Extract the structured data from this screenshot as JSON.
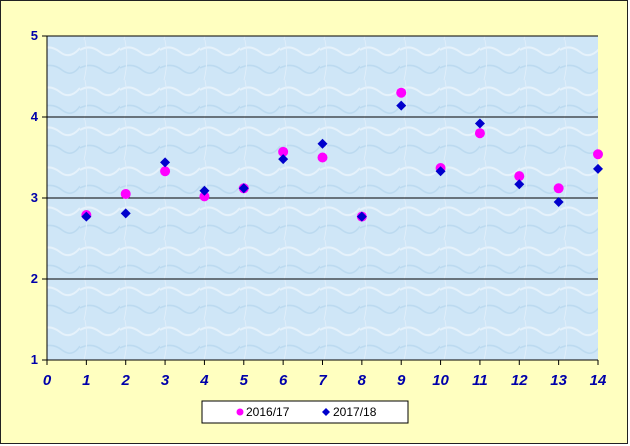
{
  "chart_data": {
    "type": "scatter",
    "title": "",
    "xlabel": "",
    "ylabel": "",
    "xlim": [
      0,
      14
    ],
    "ylim": [
      1,
      5
    ],
    "x_ticks": [
      "0",
      "1",
      "2",
      "3",
      "4",
      "5",
      "6",
      "7",
      "8",
      "9",
      "10",
      "11",
      "12",
      "13",
      "14"
    ],
    "y_ticks": [
      "1",
      "2",
      "3",
      "4",
      "5"
    ],
    "grid": "horizontal",
    "legend_position": "bottom",
    "series": [
      {
        "name": "2016/17",
        "marker": "circle",
        "color": "#ff00ff",
        "x": [
          1,
          2,
          3,
          4,
          5,
          6,
          7,
          8,
          9,
          10,
          11,
          12,
          13,
          14
        ],
        "y": [
          2.79,
          3.05,
          3.33,
          3.02,
          3.12,
          3.57,
          3.5,
          2.77,
          4.3,
          3.37,
          3.8,
          3.27,
          3.12,
          3.54
        ]
      },
      {
        "name": "2017/18",
        "marker": "diamond",
        "color": "#0000cc",
        "x": [
          1,
          2,
          3,
          4,
          5,
          6,
          7,
          8,
          9,
          10,
          11,
          12,
          13,
          14
        ],
        "y": [
          2.77,
          2.81,
          3.44,
          3.09,
          3.12,
          3.48,
          3.67,
          2.77,
          4.14,
          3.33,
          3.92,
          3.17,
          2.95,
          3.36
        ]
      }
    ]
  },
  "colors": {
    "frame_background": "#ffffc0",
    "plot_background": "#cfe6f7",
    "axis_text": "#0000aa",
    "gridline": "#000000"
  }
}
